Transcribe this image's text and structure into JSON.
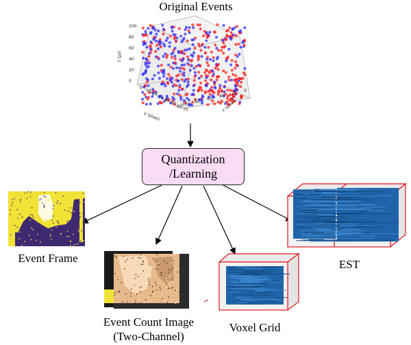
{
  "original_events": {
    "title": "Original Events",
    "z_axis_label": "t (µs)",
    "x_axis_label": "x (pixel)",
    "y_axis_label": "y (pixel)",
    "z_ticks": [
      "0",
      "20",
      "40",
      "60",
      "80",
      "100"
    ],
    "x_ticks": [
      "0",
      "20",
      "40",
      "60",
      "80",
      "100"
    ],
    "y_ticks": [
      "0",
      "10",
      "20",
      "30",
      "40",
      "50",
      "60",
      "70"
    ],
    "colors": {
      "positive": "#2b2bff",
      "negative": "#ff1a1a"
    }
  },
  "quantization": {
    "line1": "Quantization",
    "line2": "/Learning",
    "fill": "#f9dcf6"
  },
  "outputs": {
    "event_frame": "Event Frame",
    "event_count_image_line1": "Event Count Image",
    "event_count_image_line2": "(Two-Channel)",
    "voxel_grid": "Voxel Grid",
    "est": "EST"
  },
  "colors": {
    "voxel_blue": "#1f64a8",
    "box_edge": "#e0161e",
    "frame_purple": "#3f2a72",
    "frame_yellow": "#f1e236"
  }
}
